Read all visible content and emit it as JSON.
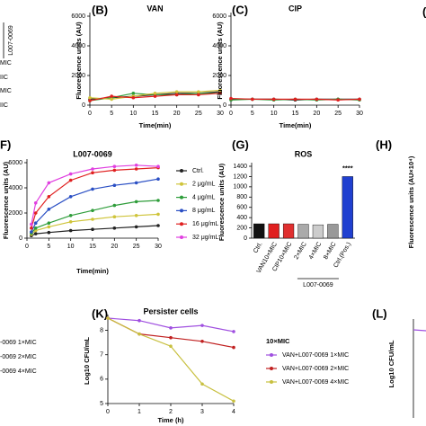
{
  "chart_data": [
    {
      "type": "line",
      "panel": "(B)",
      "title": "VAN",
      "ylabel": "Fluorescence units (AU)",
      "xlabel": "Time(min)",
      "x": [
        0,
        5,
        10,
        15,
        20,
        25,
        30
      ],
      "xlim": [
        0,
        30
      ],
      "xticks": [
        0,
        5,
        10,
        15,
        20,
        25,
        30
      ],
      "ylim": [
        0,
        6000
      ],
      "yticks": [
        0,
        2000,
        4000,
        6000
      ],
      "series": [
        {
          "color": "#222222",
          "values": [
            400,
            500,
            600,
            700,
            800,
            800,
            900
          ]
        },
        {
          "color": "#2e9d3a",
          "values": [
            300,
            500,
            800,
            700,
            700,
            800,
            800
          ]
        },
        {
          "color": "#cfc43a",
          "values": [
            500,
            400,
            600,
            800,
            900,
            900,
            1000
          ]
        },
        {
          "color": "#e02020",
          "values": [
            300,
            600,
            500,
            600,
            700,
            700,
            800
          ]
        }
      ]
    },
    {
      "type": "line",
      "panel": "(C)",
      "title": "CIP",
      "ylabel": "Fluorescence units (AU)",
      "xlabel": "Time(min)",
      "x": [
        0,
        5,
        10,
        15,
        20,
        25,
        30
      ],
      "xlim": [
        0,
        30
      ],
      "xticks": [
        0,
        5,
        10,
        15,
        20,
        25,
        30
      ],
      "ylim": [
        0,
        6000
      ],
      "yticks": [
        0,
        2000,
        4000,
        6000
      ],
      "series": [
        {
          "color": "#222222",
          "values": [
            400,
            400,
            400,
            350,
            400,
            400,
            400
          ]
        },
        {
          "color": "#2e9d3a",
          "values": [
            350,
            400,
            350,
            400,
            350,
            400,
            350
          ]
        },
        {
          "color": "#e02020",
          "values": [
            450,
            400,
            400,
            400,
            400,
            350,
            400
          ]
        }
      ]
    },
    {
      "type": "line",
      "panel": "F)",
      "title": "L007-0069",
      "ylabel": "Fluorescence units (AU)",
      "xlabel": "Time(min)",
      "x": [
        1,
        2,
        5,
        10,
        15,
        20,
        25,
        30
      ],
      "xlim": [
        0,
        30
      ],
      "xticks": [
        0,
        5,
        10,
        15,
        20,
        25,
        30
      ],
      "ylim": [
        0,
        6000
      ],
      "yticks": [
        0,
        2000,
        4000,
        6000
      ],
      "series": [
        {
          "name": "Ctrl.",
          "color": "#222222",
          "values": [
            200,
            350,
            450,
            600,
            700,
            800,
            900,
            1000
          ]
        },
        {
          "name": "2 μg/mL",
          "color": "#cfc43a",
          "values": [
            300,
            600,
            900,
            1300,
            1500,
            1700,
            1800,
            1900
          ]
        },
        {
          "name": "4 μg/mL",
          "color": "#2e9d3a",
          "values": [
            400,
            800,
            1200,
            1800,
            2200,
            2600,
            2900,
            3000
          ]
        },
        {
          "name": "8 μg/mL",
          "color": "#2a4fc4",
          "values": [
            500,
            1200,
            2300,
            3300,
            3900,
            4200,
            4400,
            4700
          ]
        },
        {
          "name": "16 μg/mL",
          "color": "#e02020",
          "values": [
            800,
            2000,
            3300,
            4600,
            5200,
            5400,
            5500,
            5600
          ]
        },
        {
          "name": "32 μg/mL",
          "color": "#e040e0",
          "values": [
            1100,
            2800,
            4400,
            5100,
            5500,
            5700,
            5800,
            5700
          ]
        }
      ]
    },
    {
      "type": "bar",
      "panel": "(G)",
      "title": "ROS",
      "ylabel": "Fluorescence units (AU)",
      "categories": [
        "Ctrl.",
        "VAN10×MIC",
        "CIP10×MIC",
        "2×MIC",
        "4×MIC",
        "8×MIC",
        "Ctrl.(Pos.)"
      ],
      "values": [
        280,
        280,
        280,
        270,
        260,
        270,
        1200
      ],
      "colors": [
        "#111111",
        "#e02020",
        "#e03030",
        "#aaaaaa",
        "#cccccc",
        "#999999",
        "#2040d0"
      ],
      "group_label": "L007-0069",
      "annotation": "****",
      "ylim": [
        0,
        1400
      ],
      "yticks": [
        0,
        200,
        400,
        600,
        800,
        1000,
        1200,
        1400
      ]
    },
    {
      "type": "line",
      "panel": "(K)",
      "title": "Persister cells",
      "ylabel": "Log10 CFU/mL",
      "xlabel": "Time (h)",
      "legend_title": "10×MIC",
      "x": [
        0,
        1,
        2,
        3,
        4
      ],
      "xlim": [
        0,
        4
      ],
      "xticks": [
        0,
        1,
        2,
        3,
        4
      ],
      "ylim": [
        5,
        8.5
      ],
      "yticks": [
        5,
        6,
        7,
        8
      ],
      "series": [
        {
          "name": "VAN+L007-0069 1×MIC",
          "color": "#a050e0",
          "values": [
            8.5,
            8.4,
            8.1,
            8.2,
            7.95
          ]
        },
        {
          "name": "VAN+L007-0069 2×MIC",
          "color": "#c02020",
          "values": [
            8.5,
            7.85,
            7.7,
            7.55,
            7.3
          ]
        },
        {
          "name": "VAN+L007-0069 4×MIC",
          "color": "#c8c040",
          "values": [
            8.5,
            7.85,
            7.35,
            5.8,
            5.1
          ]
        }
      ]
    }
  ],
  "fragments": {
    "left_title": "L007-0069",
    "left_lines": [
      "MIC",
      "IIC",
      "MIC",
      "IIC"
    ],
    "left_bottom": [
      "-0069 1×MIC",
      "-0069 2×MIC",
      "-0069 4×MIC"
    ],
    "h_panel": "(H)",
    "h_ylabel": "Fluorescence units (AU×10⁴)",
    "l_panel": "(L)",
    "l_ylabel": "Log10 CFU/mL",
    "top_right": "("
  }
}
